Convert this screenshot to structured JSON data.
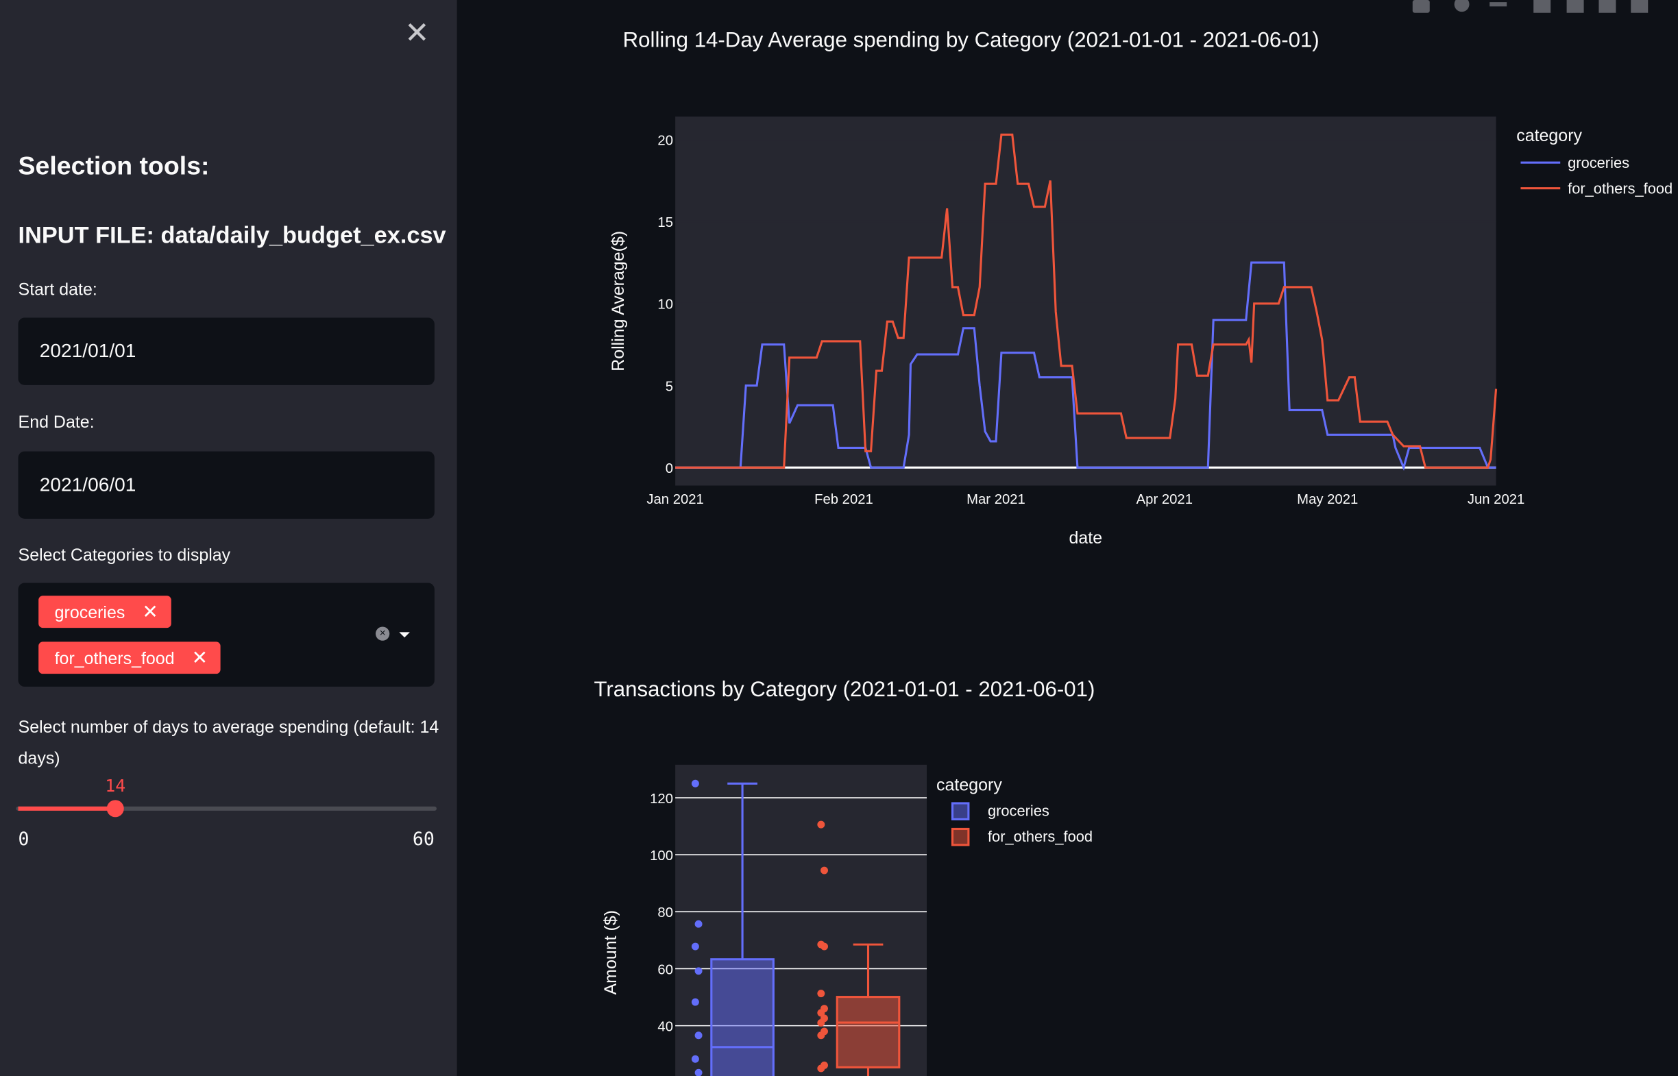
{
  "sidebar": {
    "heading": "Selection tools:",
    "input_file": "INPUT FILE: data/daily_budget_ex.csv",
    "start_label": "Start date:",
    "start_value": "2021/01/01",
    "end_label": "End Date:",
    "end_value": "2021/06/01",
    "categories_label": "Select Categories to display",
    "selected_categories": [
      "groceries",
      "for_others_food"
    ],
    "slider_label": "Select number of days to average spending (default: 14 days)",
    "slider_value": 14,
    "slider_min": 0,
    "slider_max": 60
  },
  "chart_data": [
    {
      "type": "line",
      "title": "Rolling 14-Day Average spending by Category (2021-01-01 - 2021-06-01)",
      "xlabel": "date",
      "ylabel": "Rolling Average($)",
      "legend_title": "category",
      "legend": "right",
      "xlim": [
        0,
        151
      ],
      "ylim": [
        -1.1,
        21.4
      ],
      "xticks": [
        {
          "value": 0,
          "label": "Jan 2021"
        },
        {
          "value": 31,
          "label": "Feb 2021"
        },
        {
          "value": 59,
          "label": "Mar 2021"
        },
        {
          "value": 90,
          "label": "Apr 2021"
        },
        {
          "value": 120,
          "label": "May 2021"
        },
        {
          "value": 151,
          "label": "Jun 2021"
        }
      ],
      "yticks": [
        0,
        5,
        10,
        15,
        20
      ],
      "series": [
        {
          "name": "groceries",
          "color": "#636efa",
          "x": [
            0,
            12,
            13,
            15,
            16,
            20,
            21,
            22.5,
            29,
            30,
            35,
            36,
            42,
            43,
            43.3,
            44.5,
            52,
            53,
            55,
            56,
            57,
            58,
            59,
            60,
            66,
            67,
            73,
            74,
            98,
            99,
            105,
            106,
            112,
            113,
            119,
            120,
            132,
            132.5,
            134,
            135,
            148,
            149.5,
            151
          ],
          "values": [
            0,
            0,
            5,
            5,
            7.5,
            7.5,
            2.7,
            3.8,
            3.8,
            1.2,
            1.2,
            0,
            0,
            2,
            6.3,
            6.9,
            6.9,
            8.5,
            8.5,
            5,
            2.2,
            1.6,
            1.6,
            7,
            7,
            5.5,
            5.5,
            0,
            0,
            9,
            9,
            12.5,
            12.5,
            3.5,
            3.5,
            2,
            2,
            1.2,
            0,
            1.2,
            1.2,
            0,
            0
          ]
        },
        {
          "name": "for_others_food",
          "color": "#ef553b",
          "x": [
            0,
            20,
            21,
            26,
            27,
            34,
            35,
            36,
            37,
            38,
            39,
            40,
            41,
            42,
            43,
            49,
            50,
            51,
            52,
            53,
            55,
            56,
            57,
            59,
            60,
            62,
            63,
            65,
            66,
            68,
            69,
            70,
            71,
            73,
            74,
            82,
            83,
            91,
            92,
            92.5,
            95,
            96,
            98,
            99,
            105,
            105.5,
            106,
            106.5,
            111,
            112,
            117,
            118,
            119,
            120,
            122,
            124,
            125,
            126,
            131,
            132,
            134,
            137,
            138,
            149.5,
            150,
            151
          ],
          "values": [
            0,
            0,
            6.7,
            6.7,
            7.7,
            7.7,
            1,
            1,
            5.9,
            5.9,
            8.9,
            8.9,
            7.9,
            7.9,
            12.8,
            12.8,
            15.8,
            11,
            11,
            9.3,
            9.3,
            11,
            17.3,
            17.3,
            20.3,
            20.3,
            17.3,
            17.3,
            15.9,
            15.9,
            17.5,
            9.5,
            6.2,
            6.2,
            3.3,
            3.3,
            1.8,
            1.8,
            4.2,
            7.5,
            7.5,
            5.6,
            5.6,
            7.5,
            7.5,
            7.8,
            6.4,
            10,
            10,
            11,
            11,
            9.5,
            7.8,
            4.1,
            4.1,
            5.5,
            5.5,
            2.8,
            2.8,
            2,
            1.3,
            1.3,
            0,
            0,
            0.5,
            4.8
          ]
        }
      ]
    },
    {
      "type": "box",
      "title": "Transactions by Category (2021-01-01 - 2021-06-01)",
      "ylabel": "Amount ($)",
      "legend_title": "category",
      "legend": "right",
      "grid": true,
      "ylim": [
        22.35,
        131.6
      ],
      "yticks": [
        40,
        60,
        80,
        100,
        120
      ],
      "series": [
        {
          "name": "groceries",
          "color": "#636efa",
          "upper_fence": 125,
          "q3": 63.3,
          "median": 32.5,
          "points": [
            125,
            75.7,
            67.8,
            59.2,
            48.3,
            36.6,
            28.3,
            23.5
          ]
        },
        {
          "name": "for_others_food",
          "color": "#ef553b",
          "upper_fence": 68.5,
          "q3": 50.1,
          "median": 41.1,
          "q1": 25.4,
          "points": [
            110.6,
            94.5,
            68.5,
            67.8,
            51.3,
            46,
            44.5,
            42.6,
            41,
            38,
            36.6,
            26.1,
            25
          ]
        }
      ]
    }
  ]
}
